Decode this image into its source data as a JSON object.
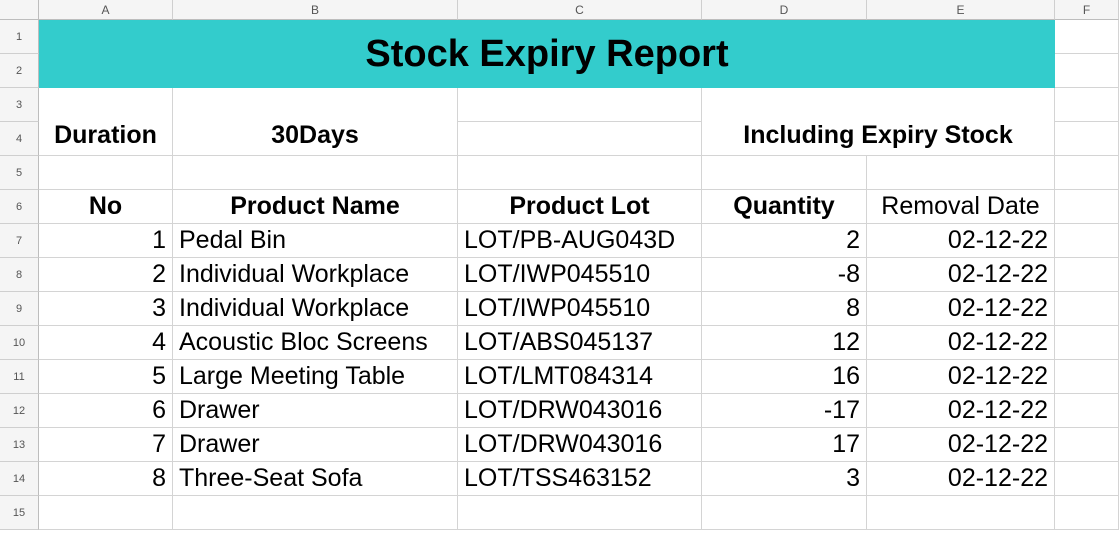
{
  "columns": [
    "A",
    "B",
    "C",
    "D",
    "E",
    "F"
  ],
  "rows": [
    "1",
    "2",
    "3",
    "4",
    "5",
    "6",
    "7",
    "8",
    "9",
    "10",
    "11",
    "12",
    "13",
    "14",
    "15"
  ],
  "title": "Stock Expiry Report",
  "duration_label": "Duration",
  "duration_value": "30Days",
  "including_label": "Including Expiry Stock",
  "headers": {
    "no": "No",
    "product_name": "Product Name",
    "product_lot": "Product Lot",
    "quantity": "Quantity",
    "removal_date": "Removal Date"
  },
  "items": [
    {
      "no": "1",
      "name": "Pedal Bin",
      "lot": "LOT/PB-AUG043D",
      "qty": "2",
      "date": "02-12-22"
    },
    {
      "no": "2",
      "name": "Individual Workplace",
      "lot": "LOT/IWP045510",
      "qty": "-8",
      "date": "02-12-22"
    },
    {
      "no": "3",
      "name": "Individual Workplace",
      "lot": "LOT/IWP045510",
      "qty": "8",
      "date": "02-12-22"
    },
    {
      "no": "4",
      "name": "Acoustic Bloc Screens",
      "lot": "LOT/ABS045137",
      "qty": "12",
      "date": "02-12-22"
    },
    {
      "no": "5",
      "name": "Large Meeting Table",
      "lot": "LOT/LMT084314",
      "qty": "16",
      "date": "02-12-22"
    },
    {
      "no": "6",
      "name": "Drawer",
      "lot": "LOT/DRW043016",
      "qty": "-17",
      "date": "02-12-22"
    },
    {
      "no": "7",
      "name": "Drawer",
      "lot": "LOT/DRW043016",
      "qty": "17",
      "date": "02-12-22"
    },
    {
      "no": "8",
      "name": "Three-Seat Sofa",
      "lot": "LOT/TSS463152",
      "qty": "3",
      "date": "02-12-22"
    }
  ],
  "colors": {
    "title_bg": "#33cccc",
    "grid": "#d4d4d4",
    "header_bg": "#f5f5f5"
  }
}
